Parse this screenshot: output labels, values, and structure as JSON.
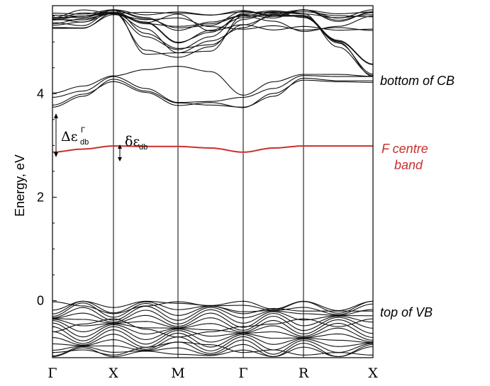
{
  "chart_data": {
    "type": "line",
    "xlabel": "",
    "ylabel": "Energy, eV",
    "x_ticks": [
      "Γ",
      "X",
      "M",
      "Γ",
      "R",
      "X"
    ],
    "y_ticks": [
      0,
      2,
      4
    ],
    "ylim": [
      -1.1,
      5.7
    ],
    "grid": false,
    "series": [
      {
        "name": "F centre band",
        "color": "#c8302c",
        "x": [
          0,
          0.5,
          1,
          1.5,
          2,
          2.5,
          3,
          3.5,
          4,
          4.5,
          5
        ],
        "values": [
          2.87,
          2.93,
          2.99,
          2.98,
          2.98,
          2.95,
          2.87,
          2.95,
          2.99,
          2.99,
          2.99
        ]
      }
    ],
    "conduction_bands_sample": [
      {
        "x": [
          0,
          0.5,
          1,
          1.5,
          2,
          2.5,
          3,
          3.5,
          4,
          4.5,
          5
        ],
        "values": [
          3.74,
          3.95,
          4.28,
          4.05,
          3.82,
          3.78,
          3.74,
          3.95,
          4.3,
          4.25,
          4.25
        ]
      },
      {
        "x": [
          0,
          0.5,
          1,
          1.5,
          2,
          2.5,
          3,
          3.5,
          4,
          4.5,
          5
        ],
        "values": [
          3.93,
          4.05,
          4.33,
          4.1,
          3.83,
          3.85,
          3.93,
          4.1,
          4.35,
          4.33,
          4.33
        ]
      },
      {
        "x": [
          0,
          0.5,
          1,
          1.5,
          2,
          2.5,
          3,
          3.5,
          4,
          4.5,
          5
        ],
        "values": [
          5.35,
          5.45,
          5.55,
          5.1,
          4.85,
          5.1,
          5.55,
          5.6,
          5.55,
          4.9,
          4.35
        ]
      },
      {
        "x": [
          0,
          0.5,
          1,
          1.5,
          2,
          2.5,
          3,
          3.5,
          4,
          4.5,
          5
        ],
        "values": [
          5.45,
          5.5,
          5.55,
          5.35,
          5.3,
          5.35,
          5.5,
          5.4,
          5.2,
          5.3,
          5.5
        ]
      }
    ],
    "valence_bands_sample": [
      {
        "x": [
          0,
          0.5,
          1,
          1.5,
          2,
          2.5,
          3,
          3.5,
          4,
          4.5,
          5
        ],
        "values": [
          -0.02,
          -0.1,
          -0.25,
          -0.1,
          -0.02,
          -0.1,
          -0.25,
          -0.15,
          -0.2,
          -0.2,
          -0.2
        ]
      },
      {
        "x": [
          0,
          0.5,
          1,
          1.5,
          2,
          2.5,
          3,
          3.5,
          4,
          4.5,
          5
        ],
        "values": [
          -0.6,
          -0.45,
          -0.35,
          -0.55,
          -0.7,
          -0.6,
          -0.5,
          -0.45,
          -0.35,
          -0.5,
          -0.35
        ]
      },
      {
        "x": [
          0,
          0.5,
          1,
          1.5,
          2,
          2.5,
          3,
          3.5,
          4,
          4.5,
          5
        ],
        "values": [
          -1.0,
          -0.95,
          -1.05,
          -0.9,
          -0.8,
          -0.85,
          -1.0,
          -0.95,
          -1.05,
          -1.0,
          -1.05
        ]
      }
    ],
    "annotations": {
      "cb": "bottom of CB",
      "vb": "top of VB",
      "fband_line1": "F centre",
      "fband_line2": "band",
      "delta_big_symbol": "Δε",
      "delta_big_sub": "db",
      "delta_big_sup": "Γ",
      "delta_small_symbol": "δε",
      "delta_small_sub": "db"
    },
    "colors": {
      "axis": "#000000",
      "bands": "#111111",
      "f_band": "#c8302c"
    }
  }
}
